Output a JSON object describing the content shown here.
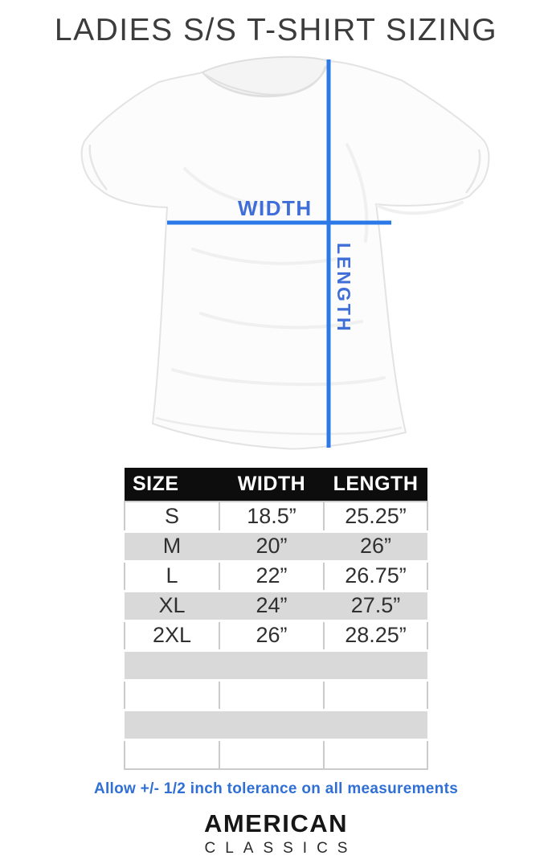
{
  "title": "LADIES S/S T-SHIRT SIZING",
  "diagram": {
    "width_label": "WIDTH",
    "length_label": "LENGTH",
    "line_color": "#2b79e6",
    "label_color": "#3f6ed8",
    "shirt_color": "#fcfcfc"
  },
  "size_table": {
    "headers": [
      "SIZE",
      "WIDTH",
      "LENGTH"
    ],
    "header_bg": "#0d0d0d",
    "stripe_color": "#d9d9d9",
    "rows": [
      {
        "size": "S",
        "width": "18.5”",
        "length": "25.25”"
      },
      {
        "size": "M",
        "width": "20”",
        "length": "26”"
      },
      {
        "size": "L",
        "width": "22”",
        "length": "26.75”"
      },
      {
        "size": "XL",
        "width": "24”",
        "length": "27.5”"
      },
      {
        "size": "2XL",
        "width": "26”",
        "length": "28.25”"
      },
      {
        "size": "",
        "width": "",
        "length": ""
      },
      {
        "size": "",
        "width": "",
        "length": ""
      },
      {
        "size": "",
        "width": "",
        "length": ""
      },
      {
        "size": "",
        "width": "",
        "length": ""
      }
    ]
  },
  "footer": {
    "tolerance_note": "Allow +/- 1/2 inch tolerance on all measurements",
    "brand_line1": "AMERICAN",
    "brand_line2": "CLASSICS",
    "note_color": "#2f6fd6"
  }
}
